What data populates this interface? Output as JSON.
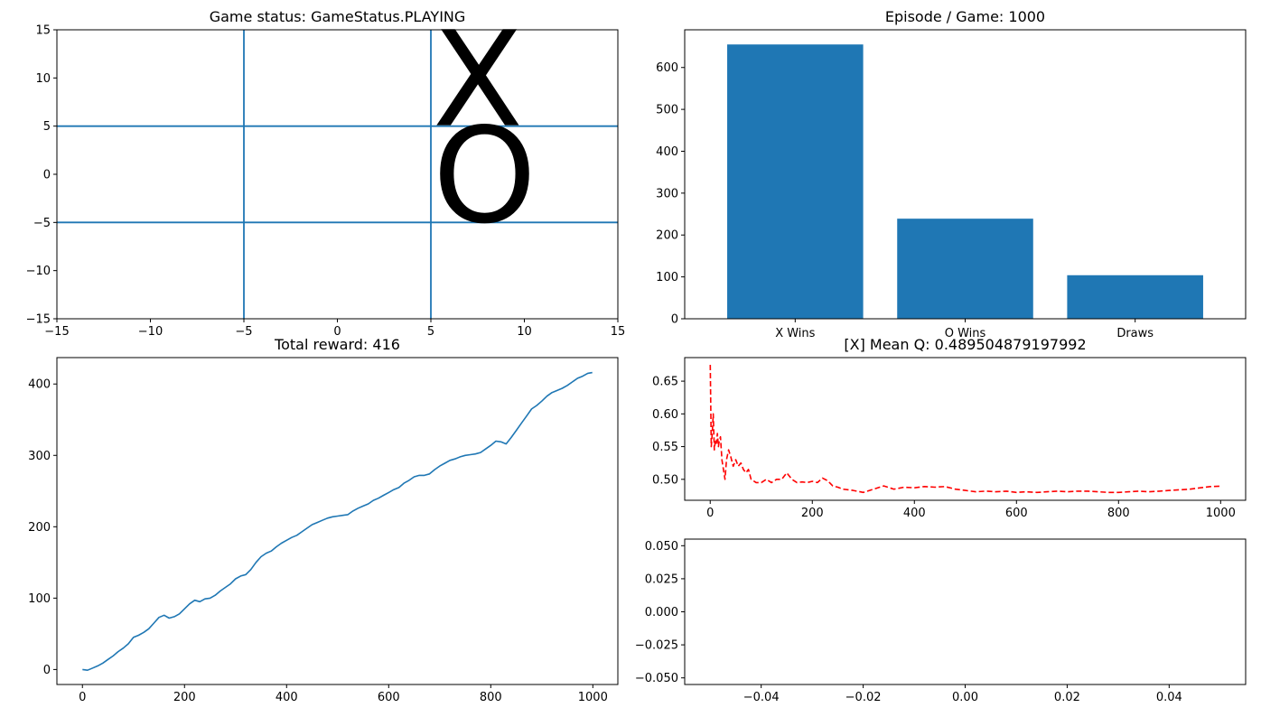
{
  "colors": {
    "series_blue": "#1f77b4",
    "mean_q_red": "#ff0000",
    "axes": "#000000",
    "mark_text": "#000000",
    "background": "#ffffff"
  },
  "chart_data": [
    {
      "id": "board",
      "type": "scatter",
      "title": "Game status: GameStatus.PLAYING",
      "xlim": [
        -15,
        15
      ],
      "ylim": [
        -15,
        15
      ],
      "xticks": [
        -15,
        -10,
        -5,
        0,
        5,
        10,
        15
      ],
      "xtick_labels": [
        "−15",
        "−10",
        "−5",
        "0",
        "5",
        "10",
        "15"
      ],
      "yticks": [
        -15,
        -10,
        -5,
        0,
        5,
        10,
        15
      ],
      "ytick_labels": [
        "−15",
        "−10",
        "−5",
        "0",
        "5",
        "10",
        "15"
      ],
      "grid_lines": {
        "vertical": [
          -5,
          5
        ],
        "horizontal": [
          -5,
          5
        ]
      },
      "marks": [
        {
          "text": "X",
          "x": 5,
          "y": 5
        },
        {
          "text": "O",
          "x": 5,
          "y": -5
        }
      ]
    },
    {
      "id": "outcomes",
      "type": "bar",
      "title": "Episode / Game: 1000",
      "categories": [
        "X Wins",
        "O Wins",
        "Draws"
      ],
      "values": [
        655,
        239,
        104
      ],
      "ylim": [
        0,
        690
      ],
      "yticks": [
        0,
        100,
        200,
        300,
        400,
        500,
        600
      ],
      "ytick_labels": [
        "0",
        "100",
        "200",
        "300",
        "400",
        "500",
        "600"
      ]
    },
    {
      "id": "reward",
      "type": "line",
      "title": "Total reward: 416",
      "xlim": [
        -50,
        1049
      ],
      "ylim": [
        -21,
        437
      ],
      "xticks": [
        0,
        200,
        400,
        600,
        800,
        1000
      ],
      "xtick_labels": [
        "0",
        "200",
        "400",
        "600",
        "800",
        "1000"
      ],
      "yticks": [
        0,
        100,
        200,
        300,
        400
      ],
      "ytick_labels": [
        "0",
        "100",
        "200",
        "300",
        "400"
      ],
      "x": [
        0,
        10,
        20,
        30,
        40,
        50,
        60,
        70,
        80,
        90,
        100,
        110,
        120,
        130,
        140,
        150,
        160,
        170,
        180,
        190,
        200,
        210,
        220,
        230,
        240,
        250,
        260,
        270,
        280,
        290,
        300,
        310,
        320,
        330,
        340,
        350,
        360,
        370,
        380,
        390,
        400,
        410,
        420,
        430,
        440,
        450,
        460,
        470,
        480,
        490,
        500,
        510,
        520,
        530,
        540,
        550,
        560,
        570,
        580,
        590,
        600,
        610,
        620,
        630,
        640,
        650,
        660,
        670,
        680,
        690,
        700,
        710,
        720,
        730,
        740,
        750,
        760,
        770,
        780,
        790,
        800,
        810,
        820,
        830,
        840,
        850,
        860,
        870,
        880,
        890,
        900,
        910,
        920,
        930,
        940,
        950,
        960,
        970,
        980,
        990,
        999
      ],
      "y": [
        0,
        -1,
        2,
        5,
        9,
        14,
        19,
        25,
        30,
        36,
        45,
        48,
        52,
        57,
        65,
        73,
        76,
        72,
        74,
        78,
        85,
        92,
        97,
        95,
        99,
        100,
        104,
        110,
        115,
        120,
        127,
        131,
        133,
        140,
        150,
        158,
        163,
        166,
        172,
        177,
        181,
        185,
        188,
        193,
        198,
        203,
        206,
        209,
        212,
        214,
        215,
        216,
        217,
        222,
        226,
        229,
        232,
        237,
        240,
        244,
        248,
        252,
        255,
        261,
        265,
        270,
        272,
        272,
        274,
        280,
        285,
        289,
        293,
        295,
        298,
        300,
        301,
        302,
        304,
        309,
        314,
        320,
        319,
        316,
        325,
        335,
        345,
        355,
        365,
        370,
        376,
        383,
        388,
        391,
        394,
        398,
        403,
        408,
        411,
        415,
        416
      ]
    },
    {
      "id": "mean_q",
      "type": "line",
      "title": "[X] Mean Q: 0.489504879197992",
      "style": "dashed",
      "xlim": [
        -50,
        1049
      ],
      "ylim": [
        0.468,
        0.686
      ],
      "xticks": [
        0,
        200,
        400,
        600,
        800,
        1000
      ],
      "xtick_labels": [
        "0",
        "200",
        "400",
        "600",
        "800",
        "1000"
      ],
      "yticks": [
        0.5,
        0.55,
        0.6,
        0.65
      ],
      "ytick_labels": [
        "0.50",
        "0.55",
        "0.60",
        "0.65"
      ],
      "x": [
        0,
        2,
        4,
        6,
        8,
        10,
        12,
        14,
        16,
        18,
        20,
        23,
        26,
        29,
        32,
        36,
        40,
        45,
        50,
        55,
        60,
        65,
        70,
        75,
        80,
        90,
        100,
        110,
        120,
        130,
        140,
        150,
        160,
        170,
        180,
        190,
        200,
        210,
        220,
        230,
        240,
        250,
        260,
        280,
        300,
        320,
        340,
        360,
        380,
        400,
        420,
        440,
        460,
        480,
        500,
        520,
        540,
        560,
        580,
        600,
        620,
        640,
        660,
        680,
        700,
        720,
        740,
        760,
        780,
        800,
        820,
        840,
        860,
        880,
        900,
        920,
        940,
        960,
        980,
        999
      ],
      "y": [
        0.675,
        0.55,
        0.57,
        0.6,
        0.545,
        0.56,
        0.555,
        0.57,
        0.55,
        0.56,
        0.565,
        0.53,
        0.515,
        0.5,
        0.53,
        0.545,
        0.535,
        0.52,
        0.53,
        0.52,
        0.525,
        0.515,
        0.51,
        0.515,
        0.5,
        0.495,
        0.495,
        0.5,
        0.495,
        0.5,
        0.5,
        0.51,
        0.5,
        0.495,
        0.496,
        0.495,
        0.497,
        0.495,
        0.502,
        0.498,
        0.49,
        0.488,
        0.485,
        0.483,
        0.48,
        0.485,
        0.49,
        0.485,
        0.488,
        0.487,
        0.489,
        0.488,
        0.489,
        0.485,
        0.483,
        0.481,
        0.482,
        0.481,
        0.482,
        0.48,
        0.481,
        0.48,
        0.481,
        0.482,
        0.481,
        0.482,
        0.482,
        0.481,
        0.48,
        0.48,
        0.481,
        0.482,
        0.481,
        0.482,
        0.483,
        0.484,
        0.485,
        0.487,
        0.489,
        0.4895
      ]
    },
    {
      "id": "empty",
      "type": "line",
      "title": "",
      "xlim": [
        -0.055,
        0.055
      ],
      "ylim": [
        -0.055,
        0.055
      ],
      "xticks": [
        -0.04,
        -0.02,
        0,
        0.02,
        0.04
      ],
      "xtick_labels": [
        "−0.04",
        "−0.02",
        "0.00",
        "0.02",
        "0.04"
      ],
      "yticks": [
        -0.05,
        -0.025,
        0,
        0.025,
        0.05
      ],
      "ytick_labels": [
        "−0.050",
        "−0.025",
        "0.000",
        "0.025",
        "0.050"
      ],
      "x": [],
      "y": []
    }
  ]
}
